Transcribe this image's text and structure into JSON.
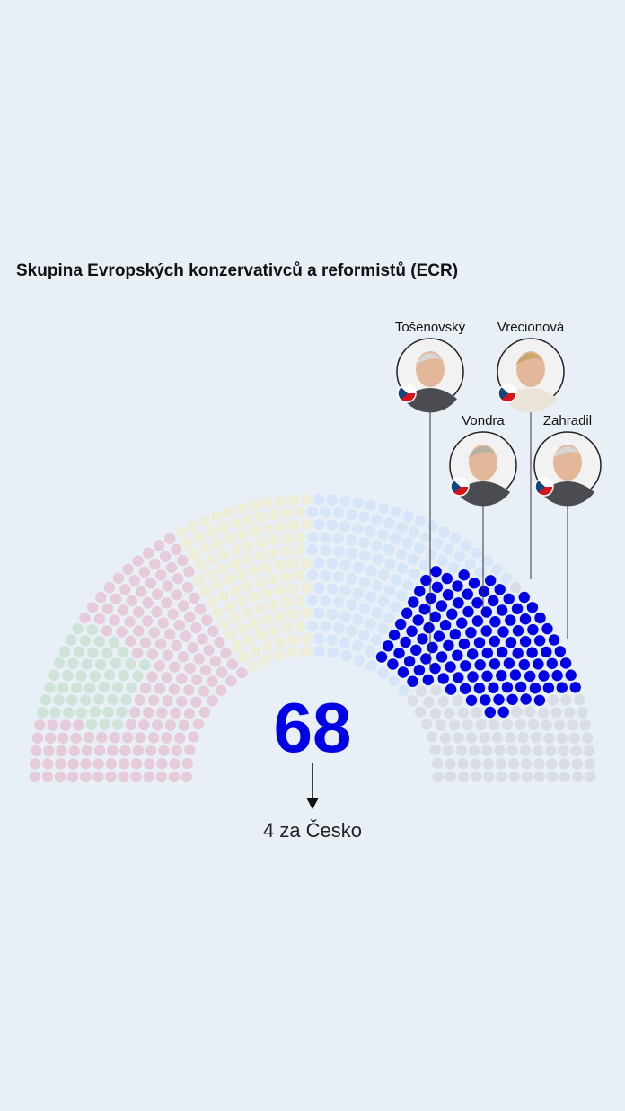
{
  "title": "Skupina Evropských konzervativců a reformistů (ECR)",
  "seat_count": "68",
  "czech_note": "4 za Česko",
  "colors": {
    "background": "#e9eff7",
    "highlight": "#0000e6",
    "left_faded": "#e6ccd8",
    "green_faded": "#cfe3d8",
    "yellow_faded": "#eeedd8",
    "blue_faded": "#d6e5f8",
    "grey_faded": "#d9dde6"
  },
  "meps": [
    {
      "name": "Tošenovský",
      "flag": "cz-flag-icon"
    },
    {
      "name": "Vrecionová",
      "flag": "cz-flag-icon"
    },
    {
      "name": "Vondra",
      "flag": "cz-flag-icon"
    },
    {
      "name": "Zahradil",
      "flag": "cz-flag-icon"
    }
  ]
}
